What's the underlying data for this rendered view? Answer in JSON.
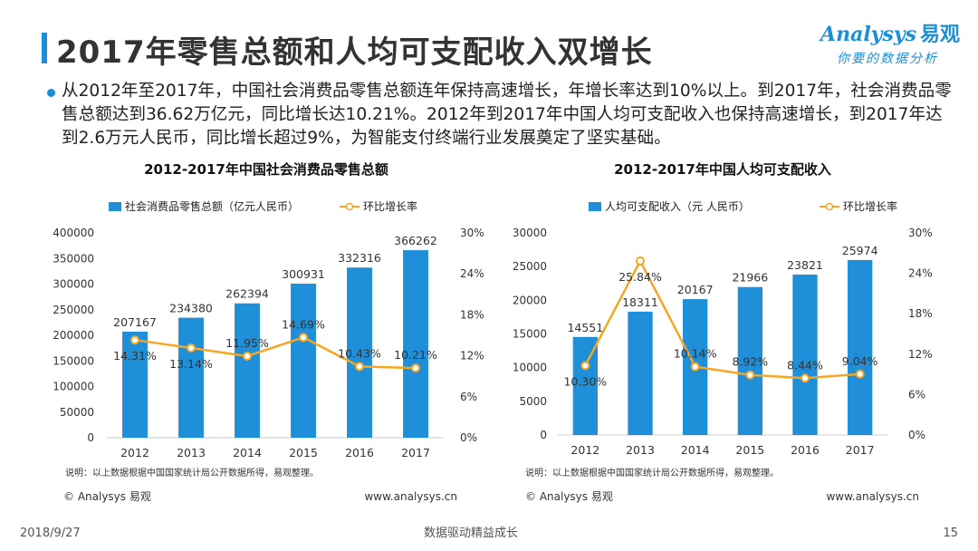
{
  "page": {
    "title": "2017年零售总额和人均可支配收入双增长",
    "intro": "从2012年至2017年，中国社会消费品零售总额连年保持高速增长，年增长率达到10%以上。到2017年，社会消费品零售总额达到36.62万亿元，同比增长达10.21%。2012年到2017年中国人均可支配收入也保持高速增长，到2017年达到2.6万元人民币，同比增长超过9%，为智能支付终端行业发展奠定了坚实基础。"
  },
  "logo": {
    "brand": "Analysys",
    "brand_cn": "易观",
    "slogan": "你要的数据分析"
  },
  "colors": {
    "accent": "#1b8ed6",
    "bar": "#1e8fd8",
    "line": "#f5a623"
  },
  "chart_data": [
    {
      "type": "bar",
      "title": "2012-2017年中国社会消费品零售总额",
      "categories": [
        "2012",
        "2013",
        "2014",
        "2015",
        "2016",
        "2017"
      ],
      "series": [
        {
          "name": "社会消费品零售总额（亿元人民币）",
          "type": "bar",
          "axis": "left",
          "values": [
            207167,
            234380,
            262394,
            300931,
            332316,
            366262
          ],
          "labels": [
            "207167",
            "234380",
            "262394",
            "300931",
            "332316",
            "366262"
          ]
        },
        {
          "name": "环比增长率",
          "type": "line",
          "axis": "right",
          "values": [
            14.31,
            13.14,
            11.95,
            14.69,
            10.43,
            10.21
          ],
          "labels": [
            "14.31%",
            "13.14%",
            "11.95%",
            "14.69%",
            "10.43%",
            "10.21%"
          ]
        }
      ],
      "ylim": [
        0,
        400000
      ],
      "yticks": [
        "0",
        "50000",
        "100000",
        "150000",
        "200000",
        "250000",
        "300000",
        "350000",
        "400000"
      ],
      "y2lim": [
        0,
        30
      ],
      "y2ticks": [
        "0%",
        "6%",
        "12%",
        "18%",
        "24%",
        "30%"
      ],
      "note": "说明：以上数据根据中国国家统计局公开数据所得，易观整理。",
      "copyright": "© Analysys 易观",
      "url": "www.analysys.cn"
    },
    {
      "type": "bar",
      "title": "2012-2017年中国人均可支配收入",
      "categories": [
        "2012",
        "2013",
        "2014",
        "2015",
        "2016",
        "2017"
      ],
      "series": [
        {
          "name": "人均可支配收入（元 人民币）",
          "type": "bar",
          "axis": "left",
          "values": [
            14551,
            18311,
            20167,
            21966,
            23821,
            25974
          ],
          "labels": [
            "14551",
            "18311",
            "20167",
            "21966",
            "23821",
            "25974"
          ]
        },
        {
          "name": "环比增长率",
          "type": "line",
          "axis": "right",
          "values": [
            10.3,
            25.84,
            10.14,
            8.92,
            8.44,
            9.04
          ],
          "labels": [
            "10.30%",
            "25.84%",
            "10.14%",
            "8.92%",
            "8.44%",
            "9.04%"
          ]
        }
      ],
      "ylim": [
        0,
        30000
      ],
      "yticks": [
        "0",
        "5000",
        "10000",
        "15000",
        "20000",
        "25000",
        "30000"
      ],
      "y2lim": [
        0,
        30
      ],
      "y2ticks": [
        "0%",
        "6%",
        "12%",
        "18%",
        "24%",
        "30%"
      ],
      "note": "说明：以上数据根据中国国家统计局公开数据所得，易观整理。",
      "copyright": "© Analysys 易观",
      "url": "www.analysys.cn"
    }
  ],
  "footer": {
    "date": "2018/9/27",
    "slogan": "数据驱动精益成长",
    "page_number": "15"
  }
}
